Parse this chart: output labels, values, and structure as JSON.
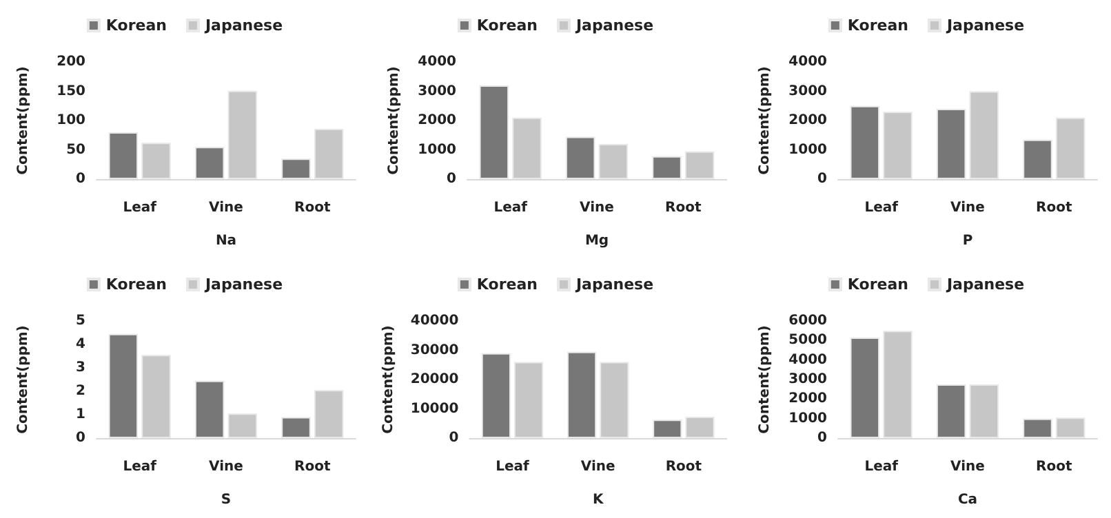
{
  "chart_data": [
    {
      "type": "bar",
      "xlabel": "Na",
      "ylabel": "Content(ppm)",
      "categories": [
        "Leaf",
        "Vine",
        "Root"
      ],
      "series": [
        {
          "name": "Korean",
          "color": "#777777",
          "values": [
            80,
            55,
            35
          ]
        },
        {
          "name": "Japanese",
          "color": "#c6c6c6",
          "values": [
            62,
            151,
            86
          ]
        }
      ],
      "ylim": [
        0,
        200
      ],
      "yticks": [
        0,
        50,
        100,
        150,
        200
      ],
      "grid": false,
      "legend": "top"
    },
    {
      "type": "bar",
      "xlabel": "Mg",
      "ylabel": "Content(ppm)",
      "categories": [
        "Leaf",
        "Vine",
        "Root"
      ],
      "series": [
        {
          "name": "Korean",
          "color": "#777777",
          "values": [
            3200,
            1450,
            780
          ]
        },
        {
          "name": "Japanese",
          "color": "#c6c6c6",
          "values": [
            2100,
            1200,
            950
          ]
        }
      ],
      "ylim": [
        0,
        4000
      ],
      "yticks": [
        0,
        1000,
        2000,
        3000,
        4000
      ],
      "grid": false,
      "legend": "top"
    },
    {
      "type": "bar",
      "xlabel": "P",
      "ylabel": "Content(ppm)",
      "categories": [
        "Leaf",
        "Vine",
        "Root"
      ],
      "series": [
        {
          "name": "Korean",
          "color": "#777777",
          "values": [
            2500,
            2400,
            1350
          ]
        },
        {
          "name": "Japanese",
          "color": "#c6c6c6",
          "values": [
            2300,
            3000,
            2100
          ]
        }
      ],
      "ylim": [
        0,
        4000
      ],
      "yticks": [
        0,
        1000,
        2000,
        3000,
        4000
      ],
      "grid": false,
      "legend": "top"
    },
    {
      "type": "bar",
      "xlabel": "S",
      "ylabel": "Content(ppm)",
      "categories": [
        "Leaf",
        "Vine",
        "Root"
      ],
      "series": [
        {
          "name": "Korean",
          "color": "#777777",
          "values": [
            4.45,
            2.45,
            0.9
          ]
        },
        {
          "name": "Japanese",
          "color": "#c6c6c6",
          "values": [
            3.55,
            1.05,
            2.05
          ]
        }
      ],
      "ylim": [
        0,
        5
      ],
      "yticks": [
        0,
        1,
        2,
        3,
        4,
        5
      ],
      "grid": false,
      "legend": "top"
    },
    {
      "type": "bar",
      "xlabel": "K",
      "ylabel": "Content(ppm)",
      "categories": [
        "Leaf",
        "Vine",
        "Root"
      ],
      "series": [
        {
          "name": "Korean",
          "color": "#777777",
          "values": [
            29000,
            29500,
            6300
          ]
        },
        {
          "name": "Japanese",
          "color": "#c6c6c6",
          "values": [
            26000,
            26000,
            7300
          ]
        }
      ],
      "ylim": [
        0,
        40000
      ],
      "yticks": [
        0,
        10000,
        20000,
        30000,
        40000
      ],
      "grid": false,
      "legend": "top"
    },
    {
      "type": "bar",
      "xlabel": "Ca",
      "ylabel": "Content(ppm)",
      "categories": [
        "Leaf",
        "Vine",
        "Root"
      ],
      "series": [
        {
          "name": "Korean",
          "color": "#777777",
          "values": [
            5150,
            2750,
            1000
          ]
        },
        {
          "name": "Japanese",
          "color": "#c6c6c6",
          "values": [
            5500,
            2750,
            1050
          ]
        }
      ],
      "ylim": [
        0,
        6000
      ],
      "yticks": [
        0,
        1000,
        2000,
        3000,
        4000,
        5000,
        6000
      ],
      "grid": false,
      "legend": "top"
    }
  ]
}
